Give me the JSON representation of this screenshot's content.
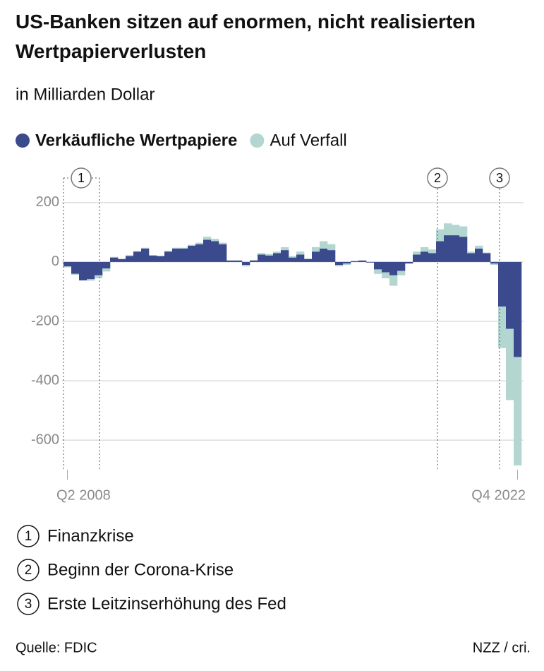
{
  "title": "US-Banken sitzen auf enormen, nicht realisierten Wertpapierverlusten",
  "subtitle": "in Milliarden Dollar",
  "chart_data": {
    "type": "bar",
    "stacked": true,
    "categories": [
      "Q2 2008",
      null,
      null,
      null,
      null,
      null,
      null,
      null,
      null,
      null,
      null,
      null,
      null,
      null,
      null,
      null,
      null,
      null,
      null,
      null,
      null,
      null,
      null,
      null,
      null,
      null,
      null,
      null,
      null,
      null,
      null,
      null,
      null,
      null,
      null,
      null,
      null,
      null,
      null,
      null,
      null,
      null,
      null,
      null,
      null,
      null,
      null,
      null,
      null,
      null,
      null,
      null,
      null,
      null,
      null,
      null,
      null,
      null,
      "Q4 2022"
    ],
    "series": [
      {
        "name": "Verkäufliche Wertpapiere",
        "color": "#3b4a8c",
        "values": [
          -15,
          -40,
          -62,
          -58,
          -45,
          -22,
          15,
          10,
          20,
          35,
          45,
          22,
          20,
          35,
          45,
          45,
          55,
          60,
          75,
          70,
          60,
          5,
          5,
          -10,
          5,
          25,
          22,
          30,
          40,
          15,
          25,
          10,
          35,
          45,
          40,
          -10,
          -5,
          3,
          5,
          -2,
          -25,
          -35,
          -45,
          -30,
          -5,
          25,
          35,
          30,
          70,
          90,
          90,
          85,
          30,
          45,
          30,
          -5,
          -150,
          -225,
          -320
        ]
      },
      {
        "name": "Auf Verfall",
        "color": "#b3d6d0",
        "values": [
          -3,
          -3,
          0,
          -5,
          -10,
          -10,
          2,
          0,
          3,
          2,
          3,
          0,
          0,
          3,
          3,
          3,
          3,
          5,
          10,
          8,
          5,
          1,
          0,
          -5,
          2,
          5,
          5,
          5,
          10,
          5,
          10,
          2,
          15,
          25,
          20,
          -5,
          -5,
          0,
          0,
          0,
          -15,
          -20,
          -35,
          -15,
          0,
          10,
          15,
          12,
          40,
          40,
          35,
          35,
          5,
          10,
          2,
          -5,
          -140,
          -240,
          -365
        ]
      }
    ],
    "ylim": [
      -690,
      290
    ],
    "yticks": [
      200,
      0,
      -200,
      -400,
      -600
    ],
    "grid": true
  },
  "annotations": [
    {
      "label": "1",
      "text": "Finanzkrise"
    },
    {
      "label": "2",
      "text": "Beginn der Corona-Krise"
    },
    {
      "label": "3",
      "text": "Erste Leitzinserhöhung des Fed"
    }
  ],
  "source": "Quelle: FDIC",
  "credit": "NZZ / cri."
}
